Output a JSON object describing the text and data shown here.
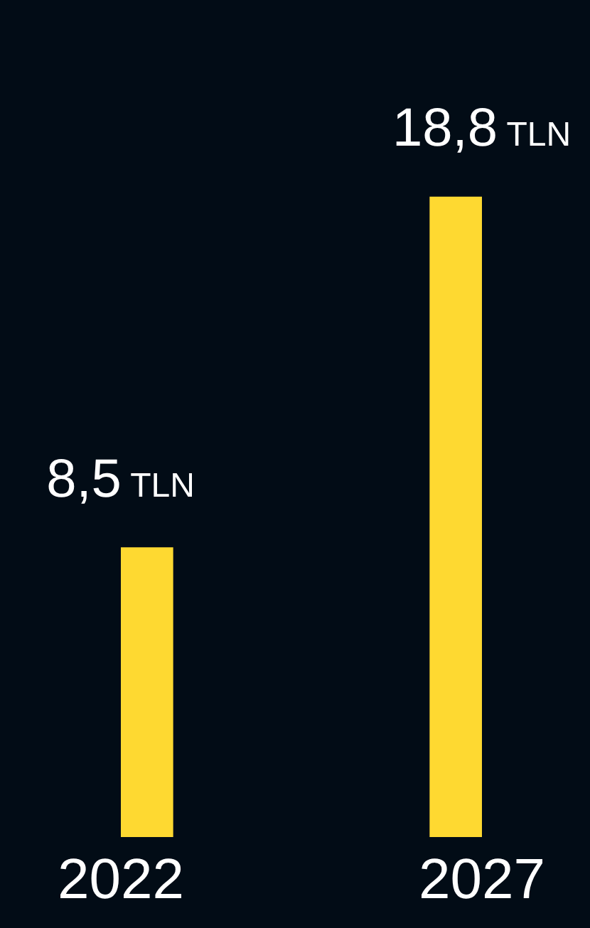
{
  "chart_data": {
    "type": "bar",
    "categories": [
      "2022",
      "2027"
    ],
    "values": [
      8.5,
      18.8
    ],
    "color": "#fed931",
    "value_labels": [
      "8,5 TLN",
      "18,8 TLN"
    ],
    "relative": false,
    "legend": false,
    "grid": false
  }
}
